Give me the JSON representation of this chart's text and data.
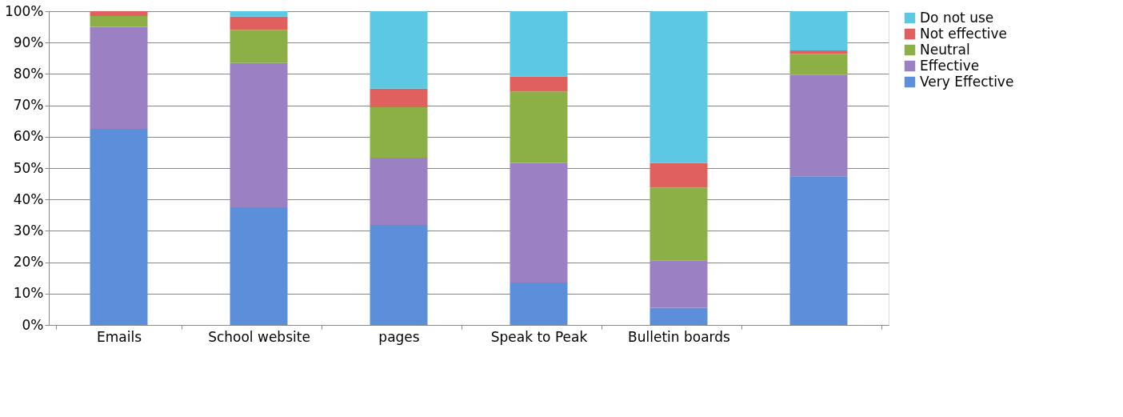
{
  "chart_data": {
    "type": "bar",
    "stacked": true,
    "categories": [
      "Emails",
      "School website",
      "pages",
      "Speak to Peak",
      "Bulletin boards",
      null
    ],
    "series": [
      {
        "name": "Very Effective",
        "color": "#5b8fd9",
        "values": [
          62.5,
          37.5,
          31.9,
          13.5,
          5.5,
          47.4
        ]
      },
      {
        "name": "Effective",
        "color": "#9b80c4",
        "values": [
          32.5,
          46.0,
          21.4,
          38.1,
          15.1,
          32.4
        ]
      },
      {
        "name": "Neutral",
        "color": "#8cb046",
        "values": [
          3.5,
          10.5,
          16.1,
          22.8,
          23.2,
          6.6
        ]
      },
      {
        "name": "Not effective",
        "color": "#e0605d",
        "values": [
          1.5,
          4.3,
          5.9,
          4.8,
          7.8,
          1.1
        ]
      },
      {
        "name": "Do not use",
        "color": "#5cc8e3",
        "values": [
          0,
          1.7,
          24.7,
          20.8,
          48.4,
          12.5
        ]
      }
    ],
    "ylim": [
      0,
      100
    ],
    "yticks": [
      {
        "value": 0,
        "label": "0%"
      },
      {
        "value": 10,
        "label": "10%"
      },
      {
        "value": 20,
        "label": "20%"
      },
      {
        "value": 30,
        "label": "30%"
      },
      {
        "value": 40,
        "label": "40%"
      },
      {
        "value": 50,
        "label": "50%"
      },
      {
        "value": 60,
        "label": "60%"
      },
      {
        "value": 70,
        "label": "70%"
      },
      {
        "value": 80,
        "label": "80%"
      },
      {
        "value": 90,
        "label": "90%"
      },
      {
        "value": 100,
        "label": "100%"
      }
    ],
    "grid": "y",
    "legend": "right"
  }
}
